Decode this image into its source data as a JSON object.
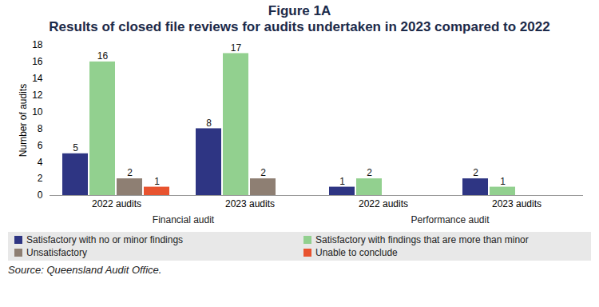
{
  "chart_data": {
    "type": "bar",
    "title": "Figure 1A",
    "subtitle": "Results of closed file reviews for audits undertaken in 2023 compared to 2022",
    "y_label": "Number of audits",
    "caption": "Source: Queensland Audit Office.",
    "categories": [
      "2022 audits",
      "2023 audits",
      "2022 audits",
      "2023 audits"
    ],
    "category_groups": [
      "Financial audit",
      "Financial audit",
      "Performance audit",
      "Performance audit"
    ],
    "series": [
      {
        "name": "Satisfactory with no or minor findings",
        "color": "#2e3583",
        "values": [
          5,
          8,
          1,
          2
        ]
      },
      {
        "name": "Satisfactory with findings that are more than minor",
        "color": "#92d08f",
        "values": [
          16,
          17,
          2,
          1
        ]
      },
      {
        "name": "Unsatisfactory",
        "color": "#8e7f73",
        "values": [
          2,
          2,
          null,
          null
        ]
      },
      {
        "name": "Unable to conclude",
        "color": "#e8532f",
        "values": [
          1,
          null,
          null,
          null
        ]
      }
    ],
    "ylim": [
      0,
      18
    ],
    "yticks": [
      0,
      2,
      4,
      6,
      8,
      10,
      12,
      14,
      16,
      18
    ],
    "grid": false,
    "legend": "bottom",
    "data_labels": true
  }
}
